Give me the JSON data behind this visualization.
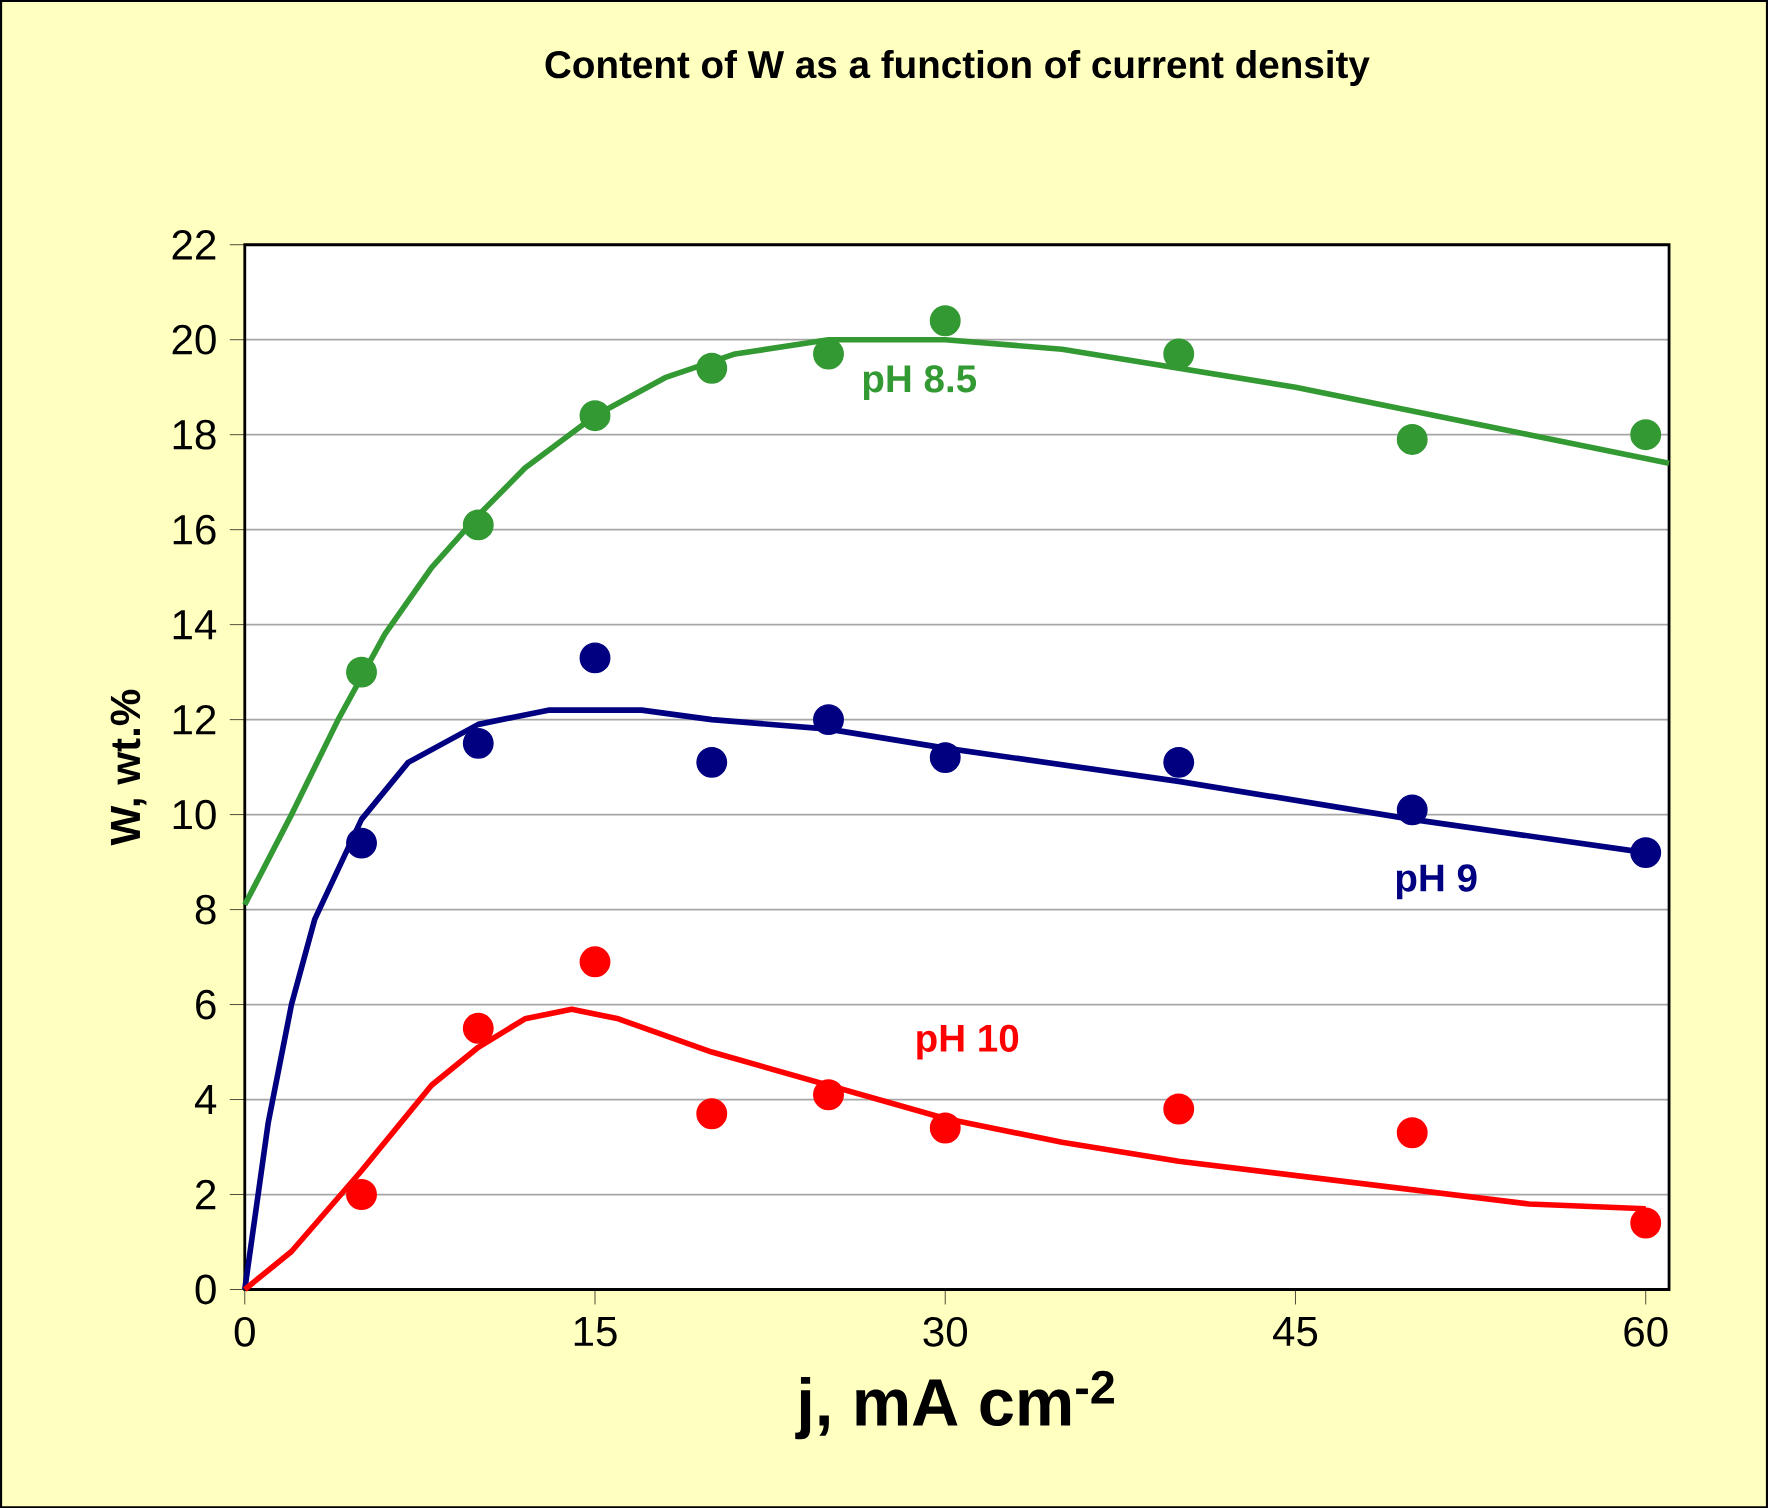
{
  "chart_data": {
    "type": "scatter",
    "title": "Content of W as a function of current density",
    "xlabel": "j, mA cm$^{-2}$",
    "ylabel": "W, wt.%",
    "xlim": [
      0,
      61
    ],
    "ylim": [
      0,
      22
    ],
    "xticks": [
      0,
      15,
      30,
      45,
      60
    ],
    "yticks": [
      0,
      2,
      4,
      6,
      8,
      10,
      12,
      14,
      16,
      18,
      20,
      22
    ],
    "grid": "y",
    "marker": "circle",
    "series": [
      {
        "name": "pH 8.5",
        "color": "#339933",
        "x": [
          5,
          10,
          15,
          20,
          25,
          30,
          40,
          50,
          60
        ],
        "values": [
          13.0,
          16.1,
          18.4,
          19.4,
          19.7,
          20.4,
          19.7,
          17.9,
          18.0
        ]
      },
      {
        "name": "pH 9",
        "color": "#000080",
        "x": [
          5,
          10,
          15,
          20,
          25,
          30,
          40,
          50,
          60
        ],
        "values": [
          9.4,
          11.5,
          13.3,
          11.1,
          12.0,
          11.2,
          11.1,
          10.1,
          9.2
        ]
      },
      {
        "name": "pH 10",
        "color": "#ff0000",
        "x": [
          5,
          10,
          15,
          20,
          25,
          30,
          40,
          50,
          60
        ],
        "values": [
          2.0,
          5.5,
          6.9,
          3.7,
          4.1,
          3.4,
          3.8,
          3.3,
          1.4
        ]
      },
      {
        "color": "#339933",
        "type": "line",
        "line_style": "solid",
        "marker": "none",
        "x": [
          0,
          2,
          4,
          6,
          8,
          10,
          12,
          15,
          18,
          21,
          25,
          30,
          35,
          40,
          45,
          50,
          55,
          61
        ],
        "values": [
          8.1,
          10.0,
          12.0,
          13.8,
          15.2,
          16.3,
          17.3,
          18.4,
          19.2,
          19.7,
          20.0,
          20.0,
          19.8,
          19.4,
          19.0,
          18.5,
          18.0,
          17.4
        ]
      },
      {
        "color": "#000080",
        "type": "line",
        "line_style": "solid",
        "marker": "none",
        "x": [
          0,
          1,
          2,
          3,
          5,
          7,
          10,
          13,
          17,
          20,
          25,
          30,
          40,
          50,
          60
        ],
        "values": [
          0,
          3.5,
          6.0,
          7.8,
          9.9,
          11.1,
          11.9,
          12.2,
          12.2,
          12.0,
          11.8,
          11.4,
          10.7,
          9.9,
          9.2
        ]
      },
      {
        "color": "#ff0000",
        "type": "line",
        "line_style": "solid",
        "marker": "none",
        "x": [
          0,
          2,
          5,
          8,
          10,
          12,
          14,
          16,
          20,
          25,
          30,
          35,
          40,
          45,
          50,
          55,
          60
        ],
        "values": [
          0,
          0.8,
          2.5,
          4.3,
          5.1,
          5.7,
          5.9,
          5.7,
          5.0,
          4.3,
          3.6,
          3.1,
          2.7,
          2.4,
          2.1,
          1.8,
          1.7
        ]
      }
    ]
  }
}
